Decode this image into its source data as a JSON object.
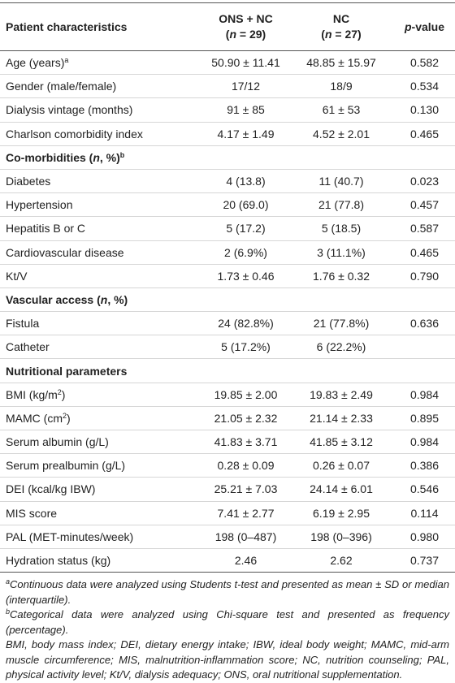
{
  "table": {
    "header": [
      [
        [
          "Patient characteristics"
        ]
      ],
      [
        [
          "ONS + NC"
        ],
        [
          "(",
          {
            "text": "n",
            "italic": true
          },
          " = 29)"
        ]
      ],
      [
        [
          "NC"
        ],
        [
          "(",
          {
            "text": "n",
            "italic": true
          },
          " = 27)"
        ]
      ],
      [
        [
          {
            "text": "p",
            "italic": true
          },
          "-value"
        ]
      ]
    ],
    "rows": [
      {
        "cells": [
          [
            "Age (years)",
            {
              "text": "a",
              "sup": true
            }
          ],
          "50.90 ± 11.41",
          "48.85 ± 15.97",
          "0.582"
        ]
      },
      {
        "cells": [
          "Gender (male/female)",
          "17/12",
          "18/9",
          "0.534"
        ]
      },
      {
        "cells": [
          "Dialysis vintage (months)",
          "91 ± 85",
          "61 ± 53",
          "0.130"
        ]
      },
      {
        "cells": [
          "Charlson comorbidity index",
          "4.17 ± 1.49",
          "4.52 ± 2.01",
          "0.465"
        ]
      },
      {
        "section": [
          "Co-morbidities (",
          {
            "text": "n",
            "italic": true
          },
          ", %)",
          {
            "text": "b",
            "sup": true
          }
        ]
      },
      {
        "cells": [
          "Diabetes",
          "4 (13.8)",
          "11 (40.7)",
          "0.023"
        ]
      },
      {
        "cells": [
          "Hypertension",
          "20 (69.0)",
          "21 (77.8)",
          "0.457"
        ]
      },
      {
        "cells": [
          "Hepatitis B or C",
          "5 (17.2)",
          "5 (18.5)",
          "0.587"
        ]
      },
      {
        "cells": [
          "Cardiovascular disease",
          "2 (6.9%)",
          "3 (11.1%)",
          "0.465"
        ]
      },
      {
        "cells": [
          "Kt/V",
          "1.73 ± 0.46",
          "1.76 ± 0.32",
          "0.790"
        ]
      },
      {
        "section": [
          "Vascular access (",
          {
            "text": "n",
            "italic": true
          },
          ", %)"
        ]
      },
      {
        "cells": [
          "Fistula",
          "24 (82.8%)",
          "21 (77.8%)",
          "0.636"
        ]
      },
      {
        "cells": [
          "Catheter",
          "5 (17.2%)",
          "6 (22.2%)"
        ]
      },
      {
        "section": [
          "Nutritional parameters"
        ]
      },
      {
        "cells": [
          [
            "BMI (kg/m",
            {
              "text": "2",
              "sup": true
            },
            ")"
          ],
          "19.85 ± 2.00",
          "19.83 ± 2.49",
          "0.984"
        ]
      },
      {
        "cells": [
          [
            "MAMC (cm",
            {
              "text": "2",
              "sup": true
            },
            ")"
          ],
          "21.05 ± 2.32",
          "21.14 ± 2.33",
          "0.895"
        ]
      },
      {
        "cells": [
          "Serum albumin (g/L)",
          "41.83 ± 3.71",
          "41.85 ± 3.12",
          "0.984"
        ]
      },
      {
        "cells": [
          "Serum prealbumin (g/L)",
          "0.28 ± 0.09",
          "0.26 ± 0.07",
          "0.386"
        ]
      },
      {
        "cells": [
          "DEI (kcal/kg IBW)",
          "25.21 ± 7.03",
          "24.14 ± 6.01",
          "0.546"
        ]
      },
      {
        "cells": [
          "MIS score",
          "7.41 ± 2.77",
          "6.19 ± 2.95",
          "0.114"
        ]
      },
      {
        "cells": [
          "PAL (MET-minutes/week)",
          "198 (0–487)",
          "198 (0–396)",
          "0.980"
        ]
      },
      {
        "cells": [
          "Hydration status (kg)",
          "2.46",
          "2.62",
          "0.737"
        ]
      }
    ]
  },
  "footnotes": [
    [
      {
        "text": "a",
        "sup": true
      },
      "Continuous data were analyzed using Students t-test and presented as mean ± SD or median (interquartile)."
    ],
    [
      {
        "text": "b",
        "sup": true
      },
      "Categorical data were analyzed using Chi-square test and presented as frequency (percentage)."
    ],
    [
      "BMI, body mass index; DEI, dietary energy intake; IBW, ideal body weight; MAMC, mid-arm muscle circumference; MIS, malnutrition-inflammation score; NC, nutrition counseling; PAL, physical activity level; Kt/V, dialysis adequacy; ONS, oral nutritional supplementation."
    ]
  ]
}
